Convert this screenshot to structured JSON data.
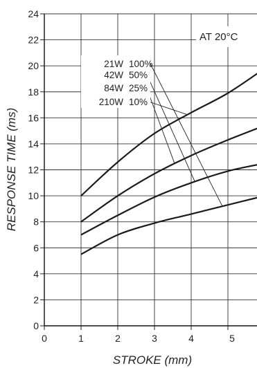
{
  "chart_data": {
    "type": "line",
    "xlabel": "STROKE (mm)",
    "ylabel": "RESPONSE TIME (ms)",
    "xlim": [
      0,
      6
    ],
    "ylim": [
      0,
      24
    ],
    "x_ticks": [
      "0",
      "1",
      "2",
      "3",
      "4",
      "5"
    ],
    "y_ticks": [
      "0",
      "2",
      "4",
      "6",
      "8",
      "10",
      "12",
      "14",
      "16",
      "18",
      "20",
      "22",
      "24"
    ],
    "grid": true,
    "annotation": "AT 20°C",
    "series": [
      {
        "name": "21W 100%",
        "x": [
          1,
          2,
          3,
          4,
          5,
          6
        ],
        "y": [
          5.5,
          7.0,
          7.9,
          8.6,
          9.3,
          10.0
        ]
      },
      {
        "name": "42W 50%",
        "x": [
          1,
          2,
          3,
          4,
          5,
          6
        ],
        "y": [
          7.0,
          8.5,
          9.9,
          11.0,
          11.9,
          12.5
        ]
      },
      {
        "name": "84W 25%",
        "x": [
          1,
          2,
          3,
          4,
          5,
          6
        ],
        "y": [
          8.0,
          10.0,
          11.7,
          13.1,
          14.3,
          15.4
        ]
      },
      {
        "name": "210W 10%",
        "x": [
          1,
          2,
          3,
          4,
          5,
          6
        ],
        "y": [
          10.0,
          12.6,
          14.8,
          16.4,
          17.9,
          19.8
        ]
      }
    ],
    "legend_rows": [
      {
        "watts": "21W",
        "percent": "100%"
      },
      {
        "watts": "42W",
        "percent": "50%"
      },
      {
        "watts": "84W",
        "percent": "25%"
      },
      {
        "watts": "210W",
        "percent": "10%"
      }
    ]
  }
}
